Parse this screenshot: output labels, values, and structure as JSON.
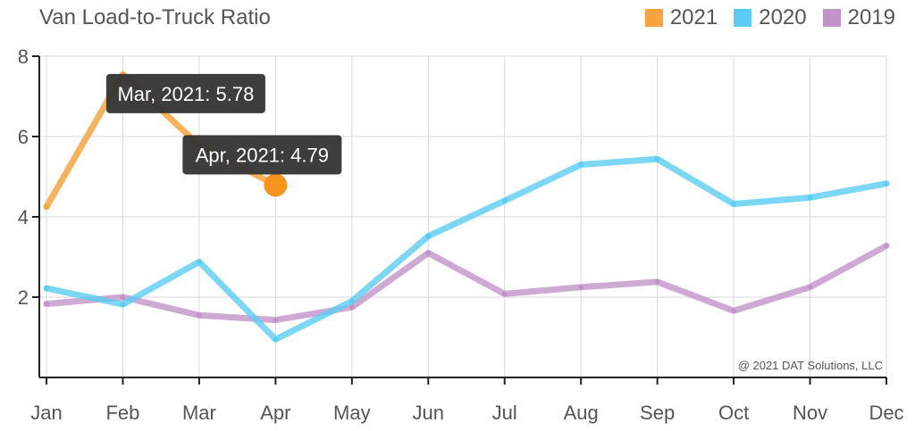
{
  "chart_data": {
    "type": "line",
    "title": "Van Load-to-Truck Ratio",
    "categories": [
      "Jan",
      "Feb",
      "Mar",
      "Apr",
      "May",
      "Jun",
      "Jul",
      "Aug",
      "Sep",
      "Oct",
      "Nov",
      "Dec"
    ],
    "ylim": [
      0,
      8
    ],
    "yticks": [
      "2",
      "4",
      "6",
      "8"
    ],
    "yticks_values": [
      2,
      4,
      6,
      8
    ],
    "grid": true,
    "legend_position": "top-right",
    "series": [
      {
        "name": "2021",
        "color": "#F7A440",
        "values": [
          4.25,
          7.55,
          5.78,
          4.79,
          null,
          null,
          null,
          null,
          null,
          null,
          null,
          null
        ]
      },
      {
        "name": "2020",
        "color": "#5BCDF2",
        "values": [
          2.22,
          1.82,
          2.88,
          0.95,
          1.9,
          3.52,
          4.4,
          5.3,
          5.44,
          4.32,
          4.48,
          4.83
        ]
      },
      {
        "name": "2019",
        "color": "#C293C8",
        "values": [
          1.83,
          2.0,
          1.55,
          1.43,
          1.75,
          3.1,
          2.08,
          2.25,
          2.38,
          1.66,
          2.25,
          3.28
        ]
      }
    ],
    "tooltips": [
      {
        "text": "Mar, 2021: 5.78",
        "category": "Mar",
        "value": 5.78
      },
      {
        "text": "Apr, 2021: 4.79",
        "category": "Apr",
        "value": 4.79
      }
    ],
    "highlight": {
      "category": "Apr",
      "value": 4.79
    },
    "credit": "@ 2021 DAT Solutions, LLC"
  }
}
